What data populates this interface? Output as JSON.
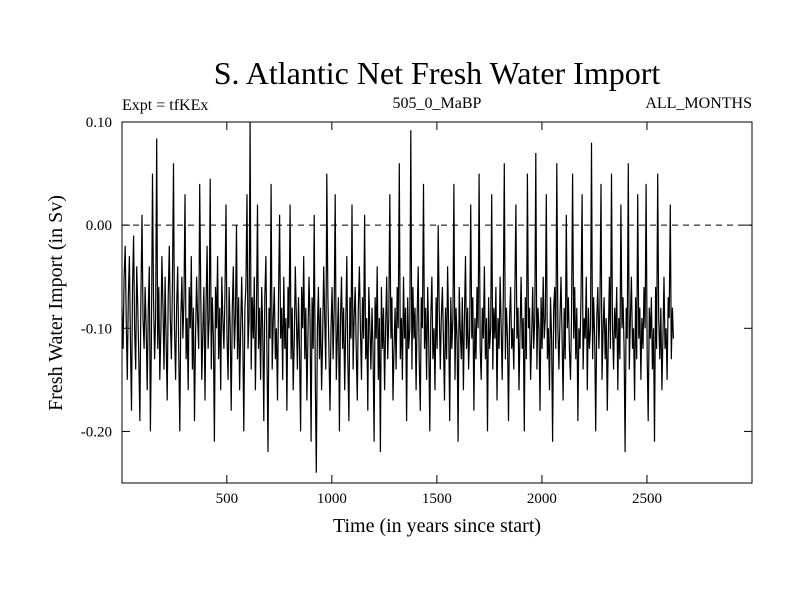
{
  "chart_data": {
    "type": "line",
    "title": "S. Atlantic Net Fresh Water Import",
    "subtitle_left": "Expt = tfKEx",
    "subtitle_center": "505_0_MaBP",
    "subtitle_right": "ALL_MONTHS",
    "xlabel": "Time (in years since start)",
    "ylabel": "Fresh Water Import (in Sv)",
    "xlim": [
      1,
      3000
    ],
    "ylim": [
      -0.25,
      0.1
    ],
    "x_ticks": [
      500,
      1000,
      1500,
      2000,
      2500
    ],
    "y_ticks": [
      0.1,
      0.0,
      -0.1,
      -0.2
    ],
    "y_tick_labels": [
      "0.10",
      "0.00",
      "-0.10",
      "-0.20"
    ],
    "reference_line": {
      "y": 0.0,
      "style": "dashed"
    },
    "grid": false,
    "series": [
      {
        "color": "#000000",
        "sample_interval_years": 5,
        "x_start": 1,
        "values": [
          -0.08,
          -0.12,
          -0.05,
          -0.02,
          -0.09,
          -0.15,
          -0.07,
          -0.03,
          -0.11,
          -0.18,
          -0.06,
          -0.01,
          -0.1,
          -0.14,
          -0.04,
          -0.08,
          -0.13,
          -0.19,
          -0.07,
          0.01,
          -0.09,
          -0.12,
          -0.06,
          -0.1,
          -0.16,
          -0.08,
          -0.04,
          -0.2,
          -0.11,
          0.05,
          -0.07,
          -0.13,
          -0.09,
          0.084,
          -0.12,
          -0.06,
          -0.15,
          -0.1,
          -0.03,
          -0.08,
          -0.14,
          -0.05,
          -0.11,
          -0.17,
          -0.07,
          -0.02,
          -0.09,
          -0.13,
          -0.06,
          0.06,
          -0.1,
          -0.15,
          -0.08,
          -0.04,
          -0.12,
          -0.2,
          -0.09,
          -0.05,
          -0.11,
          -0.07,
          0.03,
          -0.13,
          -0.09,
          -0.16,
          -0.06,
          -0.1,
          -0.03,
          -0.14,
          -0.08,
          -0.19,
          -0.11,
          -0.05,
          -0.09,
          -0.12,
          0.04,
          -0.07,
          -0.15,
          -0.1,
          -0.06,
          -0.17,
          -0.08,
          -0.02,
          -0.12,
          -0.09,
          0.045,
          -0.14,
          -0.07,
          -0.11,
          -0.21,
          -0.06,
          -0.1,
          -0.03,
          -0.13,
          -0.08,
          -0.16,
          -0.05,
          -0.09,
          -0.12,
          -0.07,
          0.02,
          -0.11,
          -0.15,
          -0.06,
          -0.1,
          -0.18,
          -0.08,
          -0.04,
          -0.12,
          -0.09,
          0.0,
          -0.13,
          -0.07,
          -0.16,
          -0.1,
          -0.05,
          -0.11,
          -0.2,
          -0.08,
          -0.06,
          0.03,
          -0.12,
          -0.09,
          0.1,
          -0.14,
          -0.07,
          -0.11,
          -0.05,
          -0.16,
          -0.09,
          0.02,
          -0.12,
          -0.08,
          -0.15,
          -0.06,
          -0.1,
          -0.19,
          -0.07,
          -0.03,
          -0.12,
          -0.22,
          -0.08,
          -0.11,
          0.04,
          -0.14,
          -0.09,
          -0.06,
          -0.13,
          -0.1,
          -0.17,
          -0.07,
          0.01,
          -0.11,
          -0.08,
          -0.15,
          -0.05,
          -0.12,
          -0.09,
          -0.18,
          -0.06,
          -0.1,
          0.02,
          -0.13,
          -0.08,
          -0.16,
          -0.11,
          -0.04,
          -0.09,
          -0.14,
          -0.07,
          -0.12,
          -0.2,
          -0.06,
          -0.1,
          -0.03,
          -0.13,
          -0.08,
          -0.17,
          -0.11,
          -0.05,
          -0.09,
          -0.21,
          -0.07,
          -0.12,
          0.01,
          -0.15,
          -0.24,
          -0.1,
          -0.06,
          -0.13,
          -0.08,
          -0.16,
          -0.11,
          -0.04,
          -0.09,
          -0.14,
          0.05,
          -0.07,
          -0.12,
          -0.18,
          -0.1,
          -0.06,
          -0.13,
          -0.08,
          0.03,
          -0.15,
          -0.11,
          -0.07,
          -0.2,
          -0.09,
          -0.05,
          -0.12,
          -0.08,
          -0.16,
          -0.1,
          -0.03,
          -0.13,
          -0.19,
          -0.07,
          -0.11,
          0.02,
          -0.14,
          -0.09,
          -0.06,
          -0.12,
          -0.17,
          -0.08,
          -0.04,
          -0.1,
          -0.15,
          -0.07,
          -0.11,
          0.01,
          -0.13,
          -0.09,
          -0.18,
          -0.06,
          -0.1,
          -0.14,
          -0.08,
          -0.12,
          -0.21,
          -0.07,
          -0.11,
          -0.04,
          -0.15,
          -0.09,
          -0.22,
          -0.06,
          -0.12,
          -0.08,
          -0.16,
          -0.1,
          -0.05,
          -0.13,
          -0.09,
          0.03,
          -0.11,
          -0.07,
          -0.17,
          -0.12,
          -0.08,
          -0.14,
          -0.06,
          -0.1,
          0.06,
          -0.13,
          -0.09,
          -0.15,
          -0.05,
          -0.11,
          -0.08,
          -0.19,
          -0.07,
          -0.12,
          -0.1,
          0.092,
          -0.14,
          -0.06,
          -0.11,
          -0.08,
          -0.16,
          -0.09,
          -0.04,
          -0.13,
          -0.18,
          -0.07,
          -0.1,
          0.04,
          -0.12,
          -0.08,
          -0.15,
          -0.06,
          -0.11,
          -0.2,
          -0.09,
          -0.05,
          -0.13,
          -0.1,
          -0.16,
          -0.07,
          -0.12,
          0.0,
          -0.08,
          -0.14,
          -0.09,
          -0.06,
          -0.11,
          -0.17,
          -0.08,
          -0.13,
          -0.04,
          -0.1,
          -0.19,
          -0.07,
          -0.12,
          -0.09,
          0.04,
          -0.15,
          -0.08,
          -0.11,
          -0.21,
          -0.06,
          -0.1,
          -0.13,
          -0.07,
          -0.16,
          -0.09,
          -0.03,
          -0.12,
          -0.08,
          -0.14,
          -0.1,
          0.02,
          -0.11,
          -0.07,
          -0.18,
          -0.09,
          -0.13,
          -0.06,
          -0.1,
          0.05,
          -0.12,
          -0.15,
          -0.08,
          -0.11,
          -0.04,
          -0.13,
          -0.09,
          -0.2,
          -0.07,
          -0.12,
          -0.1,
          0.03,
          -0.14,
          -0.08,
          -0.11,
          -0.06,
          -0.17,
          -0.09,
          -0.12,
          -0.05,
          -0.1,
          -0.15,
          -0.07,
          0.06,
          -0.13,
          -0.08,
          -0.11,
          -0.19,
          -0.09,
          -0.06,
          -0.12,
          -0.1,
          -0.14,
          -0.07,
          0.02,
          -0.11,
          -0.08,
          -0.16,
          -0.1,
          -0.05,
          -0.12,
          -0.09,
          -0.2,
          -0.07,
          -0.13,
          0.05,
          -0.1,
          -0.08,
          -0.15,
          -0.11,
          -0.06,
          -0.12,
          -0.09,
          0.07,
          -0.14,
          -0.08,
          -0.1,
          -0.18,
          -0.07,
          -0.12,
          -0.05,
          -0.11,
          -0.09,
          0.03,
          -0.13,
          -0.1,
          -0.16,
          -0.07,
          -0.11,
          -0.21,
          -0.08,
          -0.06,
          -0.12,
          0.06,
          -0.1,
          -0.14,
          -0.09,
          -0.05,
          -0.11,
          -0.17,
          -0.08,
          -0.13,
          0.01,
          -0.1,
          -0.07,
          -0.12,
          -0.15,
          -0.09,
          0.05,
          -0.11,
          -0.06,
          -0.13,
          -0.08,
          -0.19,
          -0.1,
          -0.12,
          -0.07,
          0.03,
          -0.14,
          -0.09,
          -0.11,
          -0.05,
          -0.16,
          -0.08,
          -0.12,
          -0.1,
          0.08,
          -0.13,
          -0.07,
          -0.11,
          -0.2,
          -0.09,
          -0.06,
          -0.12,
          -0.08,
          0.04,
          -0.15,
          -0.1,
          -0.07,
          -0.13,
          -0.09,
          -0.18,
          -0.11,
          -0.05,
          -0.12,
          0.05,
          -0.1,
          -0.14,
          -0.08,
          -0.11,
          -0.06,
          -0.16,
          -0.09,
          -0.13,
          0.02,
          -0.1,
          -0.07,
          -0.12,
          -0.22,
          -0.08,
          -0.11,
          0.06,
          -0.14,
          -0.09,
          -0.05,
          -0.12,
          -0.1,
          -0.17,
          -0.07,
          -0.13,
          0.03,
          -0.11,
          -0.08,
          -0.15,
          -0.09,
          -0.12,
          -0.06,
          -0.1,
          0.04,
          -0.13,
          -0.19,
          -0.08,
          -0.11,
          -0.07,
          -0.14,
          -0.1,
          -0.21,
          -0.06,
          -0.12,
          0.05,
          -0.09,
          -0.13,
          -0.08,
          -0.16,
          -0.11,
          -0.05,
          -0.12,
          -0.1,
          -0.15,
          -0.07,
          -0.09,
          0.02,
          -0.13,
          -0.08,
          -0.11
        ]
      }
    ]
  }
}
